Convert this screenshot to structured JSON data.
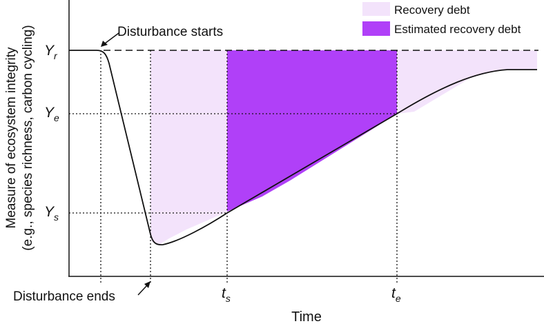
{
  "figure": {
    "xlabel": "Time",
    "ylabel_line1": "Measure of ecosystem integrity",
    "ylabel_line2": "(e.g., species richness, carbon cycling)",
    "y_levels": [
      {
        "main": "Y",
        "sub": "r"
      },
      {
        "main": "Y",
        "sub": "e"
      },
      {
        "main": "Y",
        "sub": "s"
      }
    ],
    "x_marks": [
      {
        "main": "t",
        "sub": "s"
      },
      {
        "main": "t",
        "sub": "e"
      }
    ],
    "annotations": {
      "start": "Disturbance starts",
      "end": "Disturbance ends"
    },
    "legend": [
      {
        "label": "Recovery debt",
        "color": "#f3e3fb"
      },
      {
        "label": "Estimated recovery debt",
        "color": "#b040f8"
      }
    ],
    "colors": {
      "curve": "#111111",
      "recovery_debt": "#f3e3fb",
      "estimated_recovery_debt": "#b040f8"
    }
  }
}
